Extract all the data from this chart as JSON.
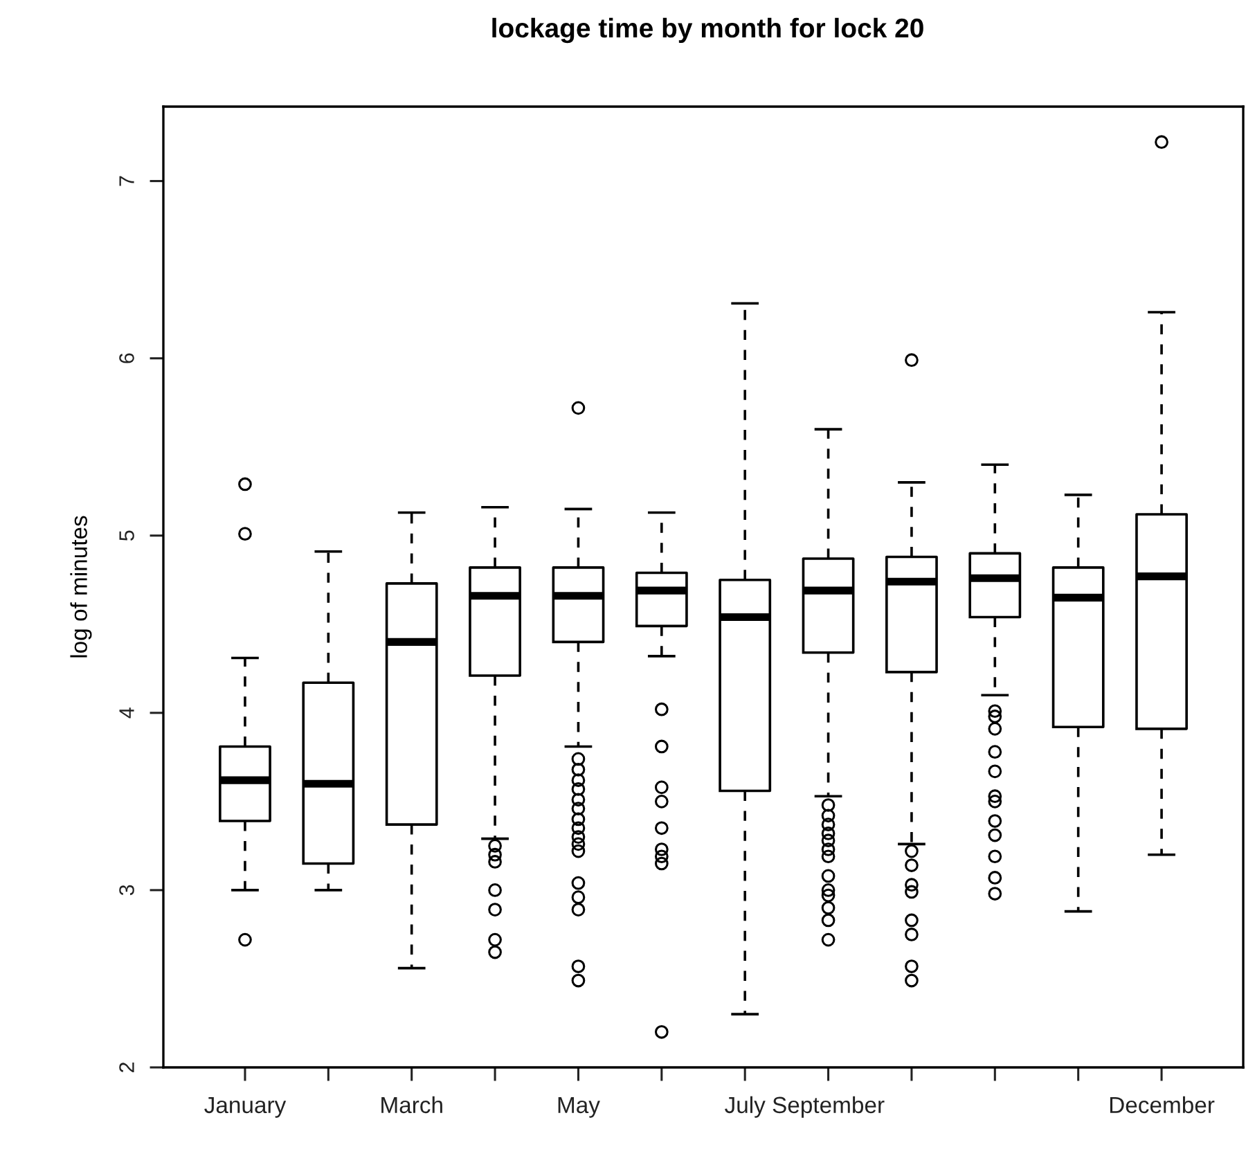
{
  "chart_data": {
    "type": "box",
    "title": "lockage time by month for lock 20",
    "ylabel": "log of minutes",
    "categories": [
      "January",
      null,
      "March",
      null,
      "May",
      null,
      "July",
      "September",
      null,
      null,
      null,
      "December"
    ],
    "ylim": [
      2.0,
      7.42
    ],
    "yticks": [
      2,
      3,
      4,
      5,
      6,
      7
    ],
    "grid": false,
    "boxes": [
      {
        "low": 3.0,
        "q1": 3.39,
        "median": 3.62,
        "q3": 3.81,
        "high": 4.31,
        "outliers": [
          5.29,
          5.01,
          2.72
        ]
      },
      {
        "low": 3.0,
        "q1": 3.15,
        "median": 3.6,
        "q3": 4.17,
        "high": 4.91
      },
      {
        "low": 2.56,
        "q1": 3.37,
        "median": 4.4,
        "q3": 4.73,
        "high": 5.13
      },
      {
        "low": 3.29,
        "q1": 4.21,
        "median": 4.66,
        "q3": 4.82,
        "high": 5.16,
        "outliers": [
          3.25,
          3.2,
          3.16,
          3.0,
          2.89,
          2.72,
          2.65
        ]
      },
      {
        "low": 3.81,
        "q1": 4.4,
        "median": 4.66,
        "q3": 4.82,
        "high": 5.15,
        "outliers": [
          5.72,
          3.74,
          3.68,
          3.62,
          3.57,
          3.51,
          3.46,
          3.4,
          3.35,
          3.3,
          3.26,
          3.22,
          3.04,
          2.96,
          2.89,
          2.57,
          2.49
        ]
      },
      {
        "low": 4.32,
        "q1": 4.49,
        "median": 4.69,
        "q3": 4.79,
        "high": 5.13,
        "outliers": [
          4.02,
          3.81,
          3.58,
          3.5,
          3.35,
          3.23,
          3.19,
          3.15,
          2.2
        ]
      },
      {
        "low": 2.3,
        "q1": 3.56,
        "median": 4.54,
        "q3": 4.75,
        "high": 6.31
      },
      {
        "low": 3.53,
        "q1": 4.34,
        "median": 4.69,
        "q3": 4.87,
        "high": 5.6,
        "outliers": [
          3.48,
          3.42,
          3.37,
          3.32,
          3.28,
          3.23,
          3.19,
          3.08,
          3.0,
          2.97,
          2.9,
          2.83,
          2.72
        ]
      },
      {
        "low": 3.26,
        "q1": 4.23,
        "median": 4.74,
        "q3": 4.88,
        "high": 5.3,
        "outliers": [
          5.99,
          3.22,
          3.14,
          3.03,
          2.99,
          2.83,
          2.75,
          2.57,
          2.49
        ]
      },
      {
        "low": 4.1,
        "q1": 4.54,
        "median": 4.76,
        "q3": 4.9,
        "high": 5.4,
        "outliers": [
          4.01,
          3.98,
          3.91,
          3.78,
          3.67,
          3.53,
          3.5,
          3.39,
          3.31,
          3.19,
          3.07,
          2.98
        ]
      },
      {
        "low": 2.88,
        "q1": 3.92,
        "median": 4.65,
        "q3": 4.82,
        "high": 5.23
      },
      {
        "low": 3.2,
        "q1": 3.91,
        "median": 4.77,
        "q3": 5.12,
        "high": 6.26,
        "outliers": [
          7.22
        ]
      }
    ]
  }
}
